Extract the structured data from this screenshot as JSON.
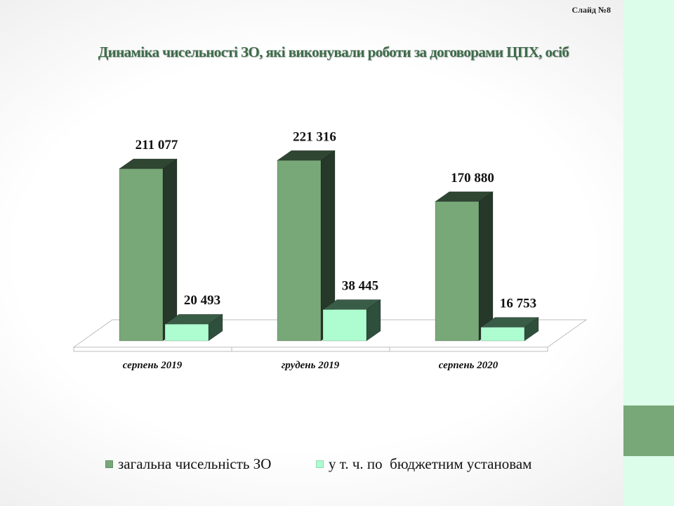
{
  "slide_label": "Слайд №8",
  "colors": {
    "total_front": "#78a878",
    "total_side": "#26382a",
    "total_top": "#2f4632",
    "budget_front": "#adfdd1",
    "budget_side": "#2f4f3d",
    "budget_top": "#395c47",
    "accent_band": "#dcfde9",
    "accent_block": "#78a878"
  },
  "chart_data": {
    "type": "bar",
    "title": "Динаміка чисельності ЗО, які виконували роботи за договорами ЦПХ, осіб",
    "categories": [
      "серпень 2019",
      "грудень 2019",
      "серпень 2020"
    ],
    "series": [
      {
        "name": "загальна чисельність ЗО",
        "values": [
          211077,
          221316,
          170880
        ],
        "labels": [
          "211 077",
          "221 316",
          "170 880"
        ]
      },
      {
        "name": "у т. ч. по  бюджетним установам",
        "values": [
          20493,
          38445,
          16753
        ],
        "labels": [
          "20 493",
          "38 445",
          "16 753"
        ]
      }
    ],
    "ylim": [
      0,
      250000
    ],
    "grid": false,
    "legend": "bottom",
    "style": "3d-column"
  }
}
